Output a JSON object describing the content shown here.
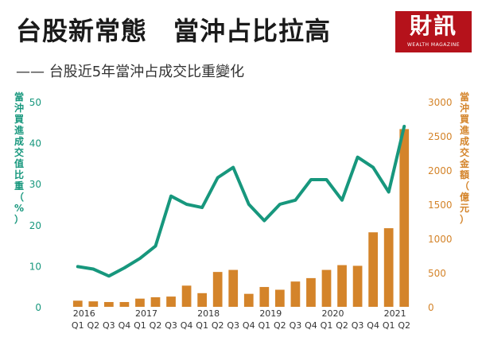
{
  "header": {
    "title": "台股新常態　當沖占比拉高",
    "subtitle": "—— 台股近5年當沖占成交比重變化"
  },
  "logo": {
    "main": "財訊",
    "sub": "WEALTH MAGAZINE",
    "color": "#b5121b"
  },
  "chart_data": {
    "type": "bar+line",
    "categories": [
      "2016 Q1",
      "Q2",
      "Q3",
      "Q4",
      "2017 Q1",
      "Q2",
      "Q3",
      "Q4",
      "2018 Q1",
      "Q2",
      "Q3",
      "Q4",
      "2019 Q1",
      "Q2",
      "Q3",
      "Q4",
      "2020 Q1",
      "Q2",
      "Q3",
      "Q4",
      "2021 Q1",
      "Q2"
    ],
    "year_labels": [
      {
        "label": "2016",
        "index": 0
      },
      {
        "label": "2017",
        "index": 4
      },
      {
        "label": "2018",
        "index": 8
      },
      {
        "label": "2019",
        "index": 12
      },
      {
        "label": "2020",
        "index": 16
      },
      {
        "label": "2021",
        "index": 20
      }
    ],
    "quarter_labels": [
      "Q1",
      "Q2",
      "Q3",
      "Q4",
      "Q1",
      "Q2",
      "Q3",
      "Q4",
      "Q1",
      "Q2",
      "Q3",
      "Q4",
      "Q1",
      "Q2",
      "Q3",
      "Q4",
      "Q1",
      "Q2",
      "Q3",
      "Q4",
      "Q1",
      "Q2"
    ],
    "left_axis": {
      "label": "當沖買進成交值比重（%）",
      "ticks": [
        "0",
        "10",
        "20",
        "30",
        "40",
        "50"
      ],
      "ylim": [
        0,
        50
      ],
      "color": "#17977d"
    },
    "right_axis": {
      "label": "當沖買進成交金額（億元）",
      "ticks": [
        "0",
        "500",
        "1000",
        "1500",
        "2000",
        "2500",
        "3000"
      ],
      "ylim": [
        0,
        3000
      ],
      "color": "#d4842a"
    },
    "series": [
      {
        "kind": "bar",
        "axis": "right",
        "color": "#d4842a",
        "values": [
          90,
          80,
          70,
          70,
          120,
          140,
          150,
          310,
          200,
          510,
          540,
          190,
          290,
          250,
          370,
          420,
          540,
          610,
          600,
          1090,
          1150,
          2600
        ]
      },
      {
        "kind": "line",
        "axis": "left",
        "color": "#17977d",
        "values": [
          9.8,
          9.2,
          7.5,
          9.5,
          11.8,
          14.8,
          27.0,
          25.0,
          24.2,
          31.5,
          34.0,
          25.0,
          21.0,
          25.0,
          26.0,
          31.0,
          31.0,
          26.0,
          36.5,
          34.0,
          28.0,
          44.0
        ]
      }
    ]
  }
}
